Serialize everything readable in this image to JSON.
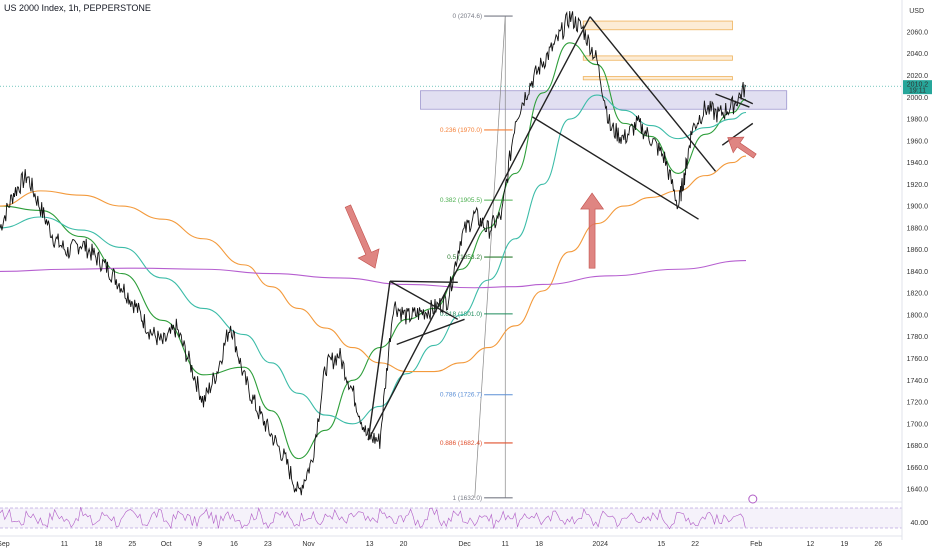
{
  "header": {
    "title": "US 2000 Index, 1h, PEPPERSTONE",
    "currency": "USD"
  },
  "price_tag": {
    "value": "2010.2",
    "countdown": "19:11"
  },
  "colors": {
    "price_line": "#111111",
    "ema_fast": "#2e9e3a",
    "ema_mid": "#3cbca8",
    "ema_slow": "#f39a3c",
    "ema_200": "#b65fd0",
    "arrow": "#d9706c",
    "zone_orange": "#f7c98a",
    "zone_purple": "#c9c4e6",
    "rsi": "#b05cc6",
    "price_tag_bg": "#26a69a"
  },
  "chart_data": {
    "type": "line",
    "title": "US 2000 Index, 1h, PEPPERSTONE",
    "ylim": [
      1630,
      2082
    ],
    "y_ticks": [
      1640,
      1660,
      1680,
      1700,
      1720,
      1740,
      1760,
      1780,
      1800,
      1820,
      1840,
      1860,
      1880,
      1900,
      1920,
      1940,
      1960,
      1980,
      2000,
      2020,
      2040,
      2060
    ],
    "y_tick_labels": [
      "1640.0",
      "1660.0",
      "1680.0",
      "1700.0",
      "1720.0",
      "1740.0",
      "1760.0",
      "1780.0",
      "1800.0",
      "1820.0",
      "1840.0",
      "1860.0",
      "1880.0",
      "1900.0",
      "1920.0",
      "1940.0",
      "1960.0",
      "1980.0",
      "2000.0",
      "2020.0",
      "2040.0",
      "2060.0"
    ],
    "x_ticks": [
      {
        "label": "Sep",
        "t": 0.5
      },
      {
        "label": "11",
        "t": 9.5
      },
      {
        "label": "18",
        "t": 14.5
      },
      {
        "label": "25",
        "t": 19.5
      },
      {
        "label": "Oct",
        "t": 24.5
      },
      {
        "label": "9",
        "t": 29.5
      },
      {
        "label": "16",
        "t": 34.5
      },
      {
        "label": "23",
        "t": 39.5
      },
      {
        "label": "Nov",
        "t": 45.5
      },
      {
        "label": "13",
        "t": 54.5
      },
      {
        "label": "20",
        "t": 59.5
      },
      {
        "label": "Dec",
        "t": 68.5
      },
      {
        "label": "11",
        "t": 74.5
      },
      {
        "label": "18",
        "t": 79.5
      },
      {
        "label": "2024",
        "t": 88.5
      },
      {
        "label": "15",
        "t": 97.5
      },
      {
        "label": "22",
        "t": 102.5
      },
      {
        "label": "Feb",
        "t": 111.5
      },
      {
        "label": "12",
        "t": 119.5
      },
      {
        "label": "19",
        "t": 124.5
      },
      {
        "label": "26",
        "t": 129.5
      }
    ],
    "series": [
      {
        "name": "",
        "role": "price",
        "x": [
          0,
          2,
          4,
          6,
          8,
          10,
          12,
          14,
          16,
          18,
          20,
          22,
          24,
          26,
          28,
          30,
          32,
          34,
          36,
          38,
          40,
          42,
          44,
          46,
          48,
          50,
          52,
          54,
          56,
          58,
          60,
          62,
          64,
          66,
          68,
          70,
          72,
          74,
          76,
          78,
          80,
          82,
          84,
          86,
          88,
          90,
          92,
          94,
          96,
          98,
          100,
          101,
          102,
          104,
          106,
          108,
          110
        ],
        "y": [
          1880,
          1912,
          1928,
          1898,
          1870,
          1858,
          1866,
          1854,
          1842,
          1826,
          1808,
          1786,
          1774,
          1788,
          1756,
          1720,
          1748,
          1792,
          1742,
          1712,
          1690,
          1668,
          1636,
          1666,
          1752,
          1764,
          1730,
          1690,
          1684,
          1810,
          1798,
          1802,
          1806,
          1814,
          1872,
          1892,
          1878,
          1892,
          1980,
          2010,
          2032,
          2050,
          2074,
          2062,
          2034,
          1972,
          1962,
          1976,
          1962,
          1944,
          1900,
          1930,
          1970,
          1990,
          1984,
          1992,
          2010
        ]
      },
      {
        "name": "",
        "role": "ema_fast",
        "x": [
          0,
          6,
          12,
          18,
          24,
          30,
          36,
          40,
          44,
          48,
          52,
          56,
          60,
          64,
          68,
          72,
          76,
          80,
          84,
          88,
          92,
          96,
          100,
          104,
          108,
          110
        ],
        "y": [
          1900,
          1896,
          1872,
          1838,
          1795,
          1745,
          1752,
          1712,
          1668,
          1694,
          1740,
          1770,
          1796,
          1806,
          1842,
          1880,
          1930,
          2004,
          2050,
          2030,
          1976,
          1964,
          1930,
          1966,
          1986,
          1998
        ]
      },
      {
        "name": "",
        "role": "ema_mid",
        "x": [
          0,
          6,
          12,
          18,
          24,
          30,
          36,
          40,
          44,
          48,
          52,
          56,
          60,
          64,
          68,
          72,
          76,
          80,
          84,
          88,
          92,
          96,
          100,
          104,
          108,
          110
        ],
        "y": [
          1880,
          1890,
          1878,
          1862,
          1834,
          1806,
          1782,
          1756,
          1728,
          1708,
          1700,
          1716,
          1746,
          1772,
          1800,
          1832,
          1870,
          1920,
          1980,
          2002,
          1988,
          1974,
          1962,
          1972,
          1980,
          1986
        ]
      },
      {
        "name": "",
        "role": "ema_slow",
        "x": [
          0,
          6,
          12,
          18,
          24,
          30,
          36,
          40,
          44,
          48,
          52,
          56,
          60,
          64,
          68,
          72,
          76,
          80,
          84,
          88,
          92,
          96,
          100,
          104,
          108,
          110
        ],
        "y": [
          1900,
          1914,
          1910,
          1900,
          1888,
          1870,
          1846,
          1826,
          1806,
          1788,
          1770,
          1756,
          1748,
          1748,
          1756,
          1770,
          1790,
          1822,
          1858,
          1884,
          1900,
          1908,
          1914,
          1928,
          1940,
          1946
        ]
      },
      {
        "name": "",
        "role": "ema_200",
        "x": [
          0,
          10,
          20,
          30,
          40,
          50,
          60,
          70,
          76,
          80,
          90,
          100,
          110
        ],
        "y": [
          1840,
          1842,
          1843,
          1842,
          1838,
          1834,
          1828,
          1825,
          1826,
          1828,
          1836,
          1842,
          1850
        ]
      }
    ],
    "fib_levels": [
      {
        "ratio": "0",
        "value": 2074.6,
        "label": "0 (2074.6)",
        "color": "#787b86"
      },
      {
        "ratio": "0.236",
        "value": 1970.0,
        "label": "0.236 (1970.0)",
        "color": "#f57f35"
      },
      {
        "ratio": "0.382",
        "value": 1905.5,
        "label": "0.382 (1905.5)",
        "color": "#4caf50"
      },
      {
        "ratio": "0.5",
        "value": 1853.2,
        "label": "0.5 (1853.2)",
        "color": "#2e7d32"
      },
      {
        "ratio": "0.618",
        "value": 1801.0,
        "label": "0.618 (1801.0)",
        "color": "#1b8a5a"
      },
      {
        "ratio": "0.786",
        "value": 1726.7,
        "label": "0.786 (1726.7)",
        "color": "#5b8fd6"
      },
      {
        "ratio": "0.886",
        "value": 1682.4,
        "label": "0.886 (1682.4)",
        "color": "#e0502e"
      },
      {
        "ratio": "1",
        "value": 1632.0,
        "label": "1 (1632.0)",
        "color": "#787b86"
      }
    ],
    "zones": [
      {
        "t0": 86,
        "t1": 108,
        "y0": 2062,
        "y1": 2070,
        "color": "orange"
      },
      {
        "t0": 86,
        "t1": 108,
        "y0": 2034,
        "y1": 2038,
        "color": "orange"
      },
      {
        "t0": 86,
        "t1": 108,
        "y0": 2016,
        "y1": 2019,
        "color": "orange"
      },
      {
        "t0": 62,
        "t1": 116,
        "y0": 1989,
        "y1": 2006,
        "color": "purple"
      }
    ],
    "rsi": {
      "ylim": [
        20,
        80
      ],
      "tick_label": "40.00",
      "band": [
        30,
        70
      ]
    }
  }
}
